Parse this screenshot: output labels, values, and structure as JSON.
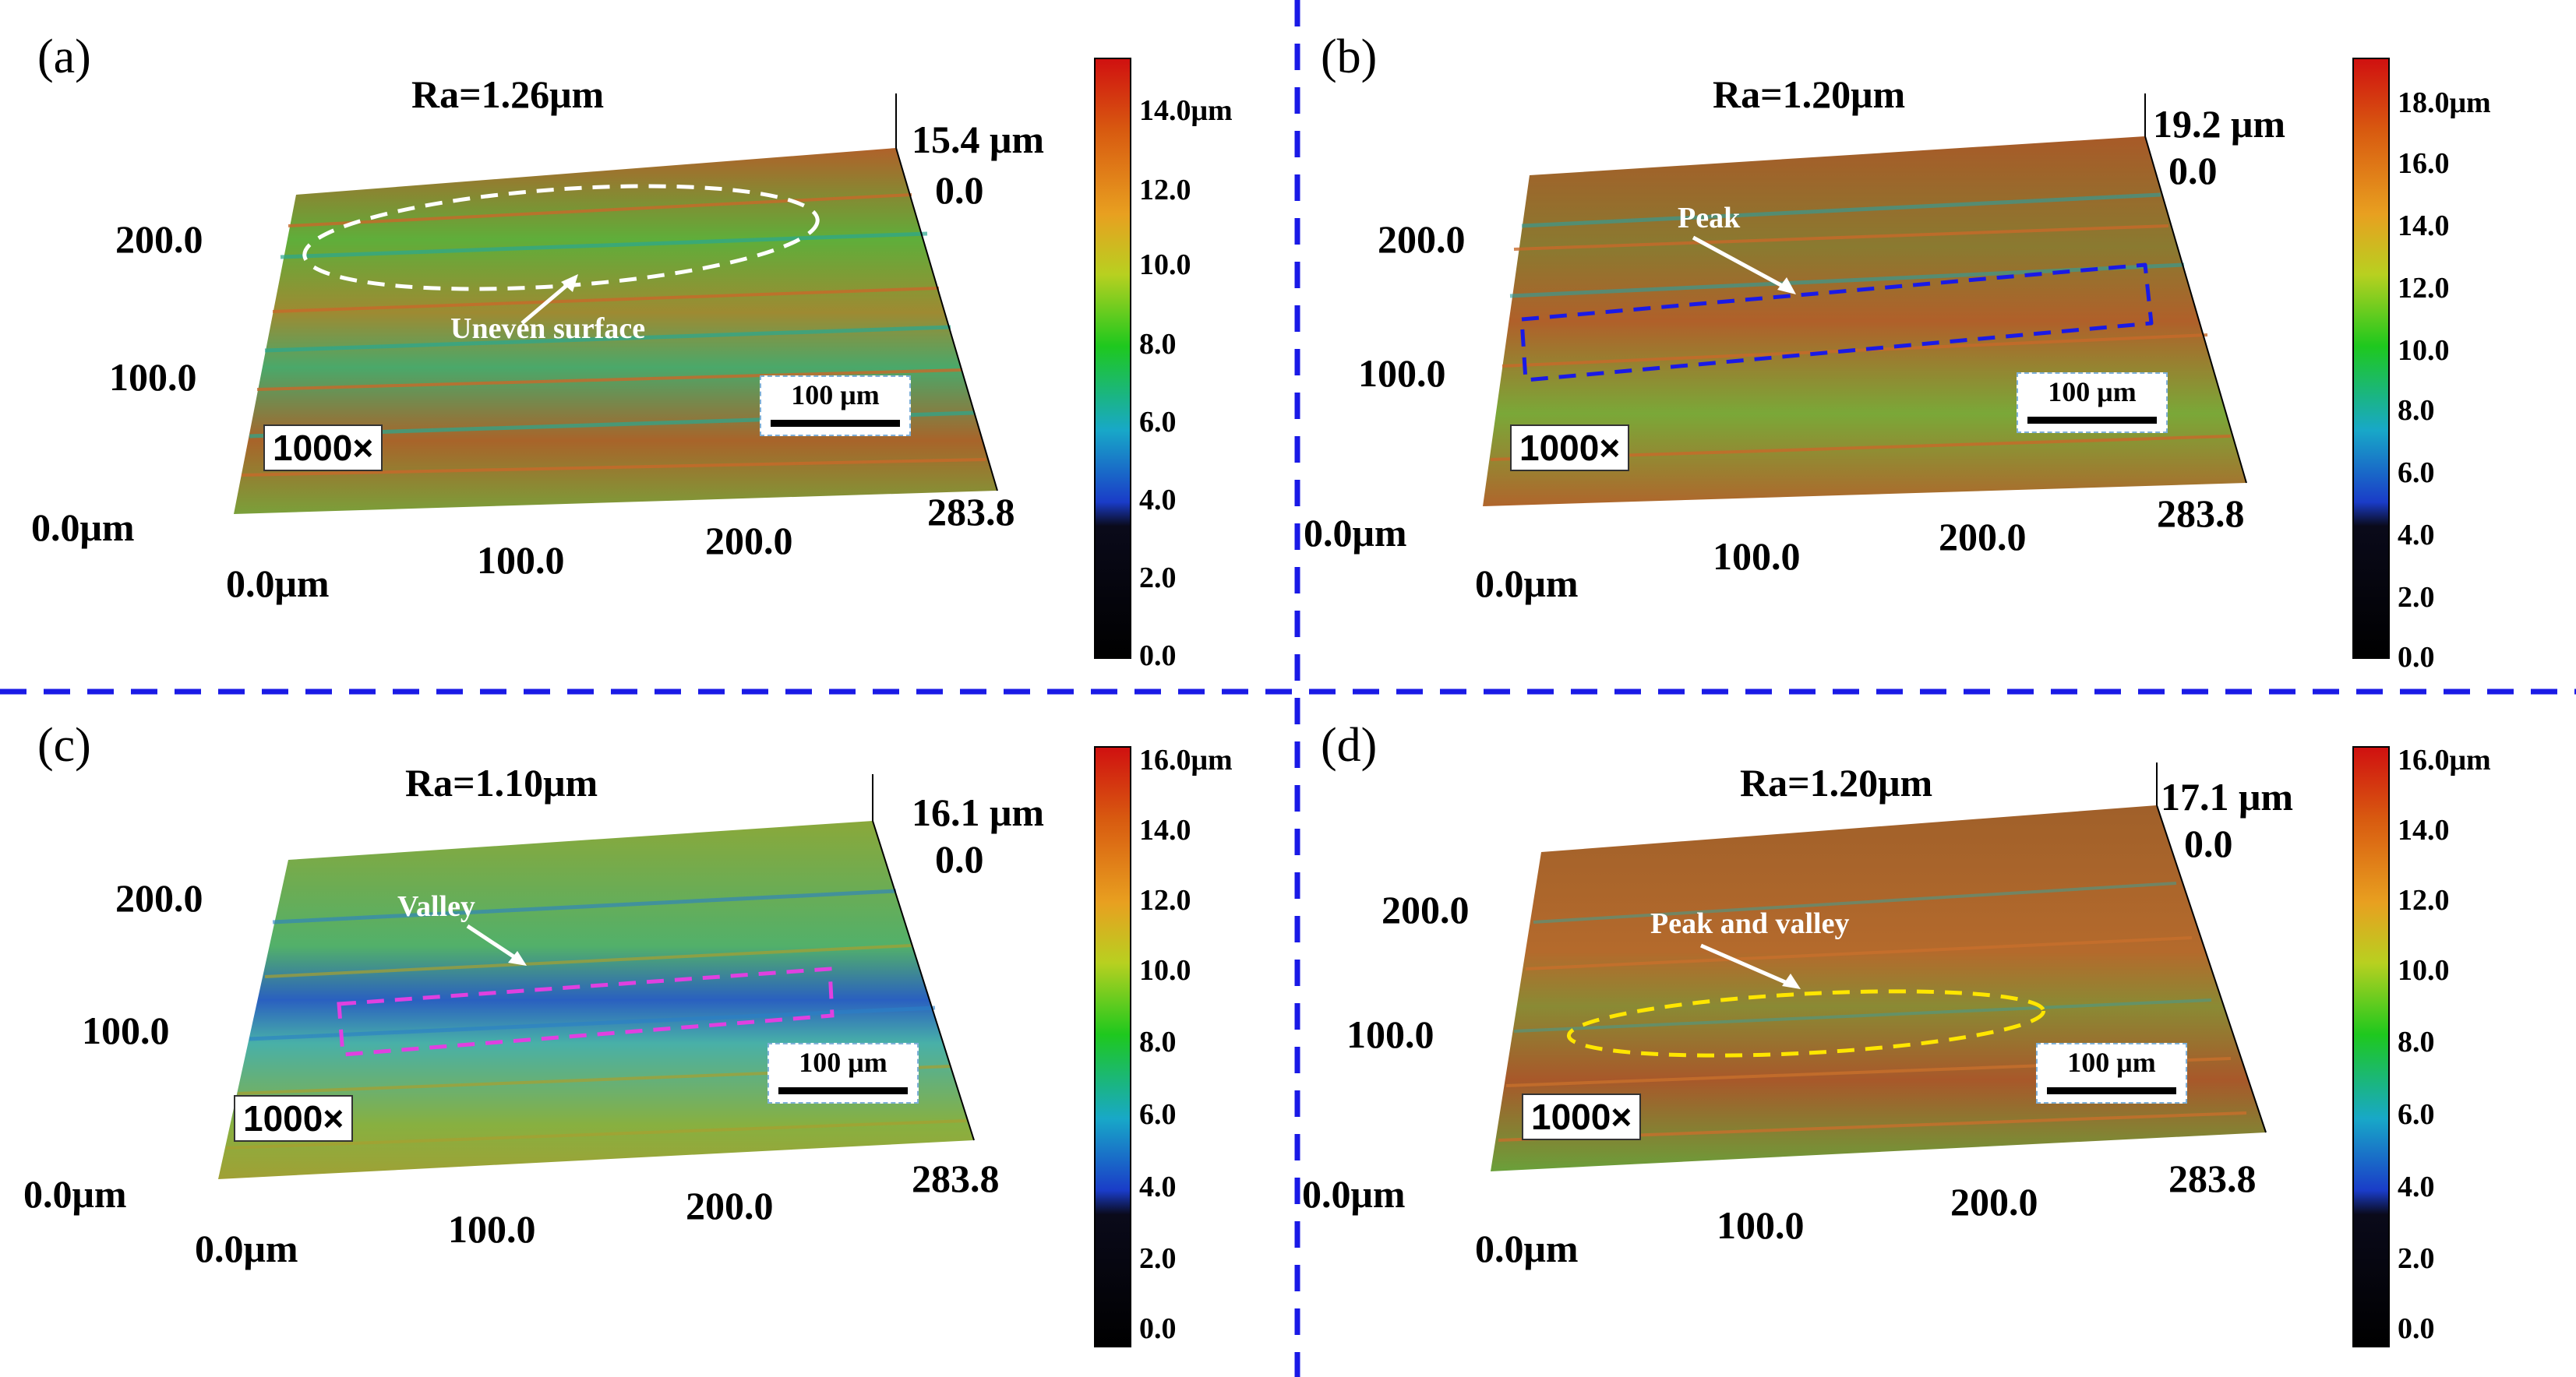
{
  "panels": [
    {
      "id": "a",
      "label": "(a)",
      "ra": "Ra=1.26μm",
      "zmax": "15.4 μm",
      "zmin": "0.0",
      "y_ticks": [
        "200.0",
        "100.0",
        "0.0μm"
      ],
      "x_ticks": [
        "0.0μm",
        "100.0",
        "200.0",
        "283.8"
      ],
      "colorbar": [
        "14.0μm",
        "12.0",
        "10.0",
        "8.0",
        "6.0",
        "4.0",
        "2.0",
        "0.0"
      ],
      "magnification": "1000×",
      "scale": "100 μm",
      "annotation": "Uneven surface",
      "dominant": "green-brown"
    },
    {
      "id": "b",
      "label": "(b)",
      "ra": "Ra=1.20μm",
      "zmax": "19.2 μm",
      "zmin": "0.0",
      "y_ticks": [
        "200.0",
        "100.0",
        "0.0μm"
      ],
      "x_ticks": [
        "0.0μm",
        "100.0",
        "200.0",
        "283.8"
      ],
      "colorbar": [
        "18.0μm",
        "16.0",
        "14.0",
        "12.0",
        "10.0",
        "8.0",
        "6.0",
        "4.0",
        "2.0",
        "0.0"
      ],
      "magnification": "1000×",
      "scale": "100 μm",
      "annotation": "Peak",
      "dominant": "brown"
    },
    {
      "id": "c",
      "label": "(c)",
      "ra": "Ra=1.10μm",
      "zmax": "16.1 μm",
      "zmin": "0.0",
      "y_ticks": [
        "200.0",
        "100.0",
        "0.0μm"
      ],
      "x_ticks": [
        "0.0μm",
        "100.0",
        "200.0",
        "283.8"
      ],
      "colorbar": [
        "16.0μm",
        "14.0",
        "12.0",
        "10.0",
        "8.0",
        "6.0",
        "4.0",
        "2.0",
        "0.0"
      ],
      "magnification": "1000×",
      "scale": "100 μm",
      "annotation": "Valley",
      "dominant": "green-blue"
    },
    {
      "id": "d",
      "label": "(d)",
      "ra": "Ra=1.20μm",
      "zmax": "17.1 μm",
      "zmin": "0.0",
      "y_ticks": [
        "200.0",
        "100.0",
        "0.0μm"
      ],
      "x_ticks": [
        "0.0μm",
        "100.0",
        "200.0",
        "283.8"
      ],
      "colorbar": [
        "16.0μm",
        "14.0",
        "12.0",
        "10.0",
        "8.0",
        "6.0",
        "4.0",
        "2.0",
        "0.0"
      ],
      "magnification": "1000×",
      "scale": "100 μm",
      "annotation": "Peak and valley",
      "dominant": "brown"
    }
  ],
  "colors": {
    "divider": "#1a1ae6",
    "annot_a": "#ffffff",
    "annot_b": "#1a1ae6",
    "annot_c": "#e040e0",
    "annot_d": "#ffe600"
  }
}
